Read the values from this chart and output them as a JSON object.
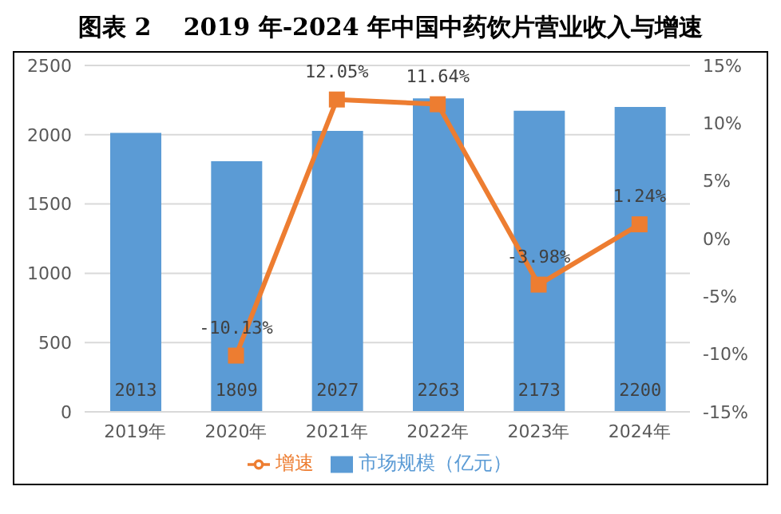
{
  "chart_data": {
    "type": "bar",
    "title": "图表 2　 2019 年-2024 年中国中药饮片营业收入与增速",
    "categories": [
      "2019年",
      "2020年",
      "2021年",
      "2022年",
      "2023年",
      "2024年"
    ],
    "series": [
      {
        "name": "市场规模（亿元）",
        "color": "#5b9bd5",
        "values": [
          2013,
          1809,
          2027,
          2263,
          2173,
          2200
        ],
        "value_labels": [
          "2013",
          "1809",
          "2027",
          "2263",
          "2173",
          "2200"
        ]
      },
      {
        "name": "增速",
        "type": "line",
        "axis": "y2",
        "color": "#ed7d31",
        "marker": "square",
        "values": [
          null,
          -10.13,
          12.05,
          11.64,
          -3.98,
          1.24
        ],
        "value_labels": [
          null,
          "-10.13%",
          "12.05%",
          "11.64%",
          "-3.98%",
          "1.24%"
        ]
      }
    ],
    "ylim": [
      0,
      2500
    ],
    "yticks": [
      0,
      500,
      1000,
      1500,
      2000,
      2500
    ],
    "y2lim": [
      -15,
      15
    ],
    "y2ticks": [
      {
        "value": -15,
        "label": "-15%"
      },
      {
        "value": -10,
        "label": "-10%"
      },
      {
        "value": -5,
        "label": "-5%"
      },
      {
        "value": 0,
        "label": "0%"
      },
      {
        "value": 5,
        "label": "5%"
      },
      {
        "value": 10,
        "label": "10%"
      },
      {
        "value": 15,
        "label": "15%"
      }
    ],
    "grid": "y",
    "legend": "bottom"
  }
}
